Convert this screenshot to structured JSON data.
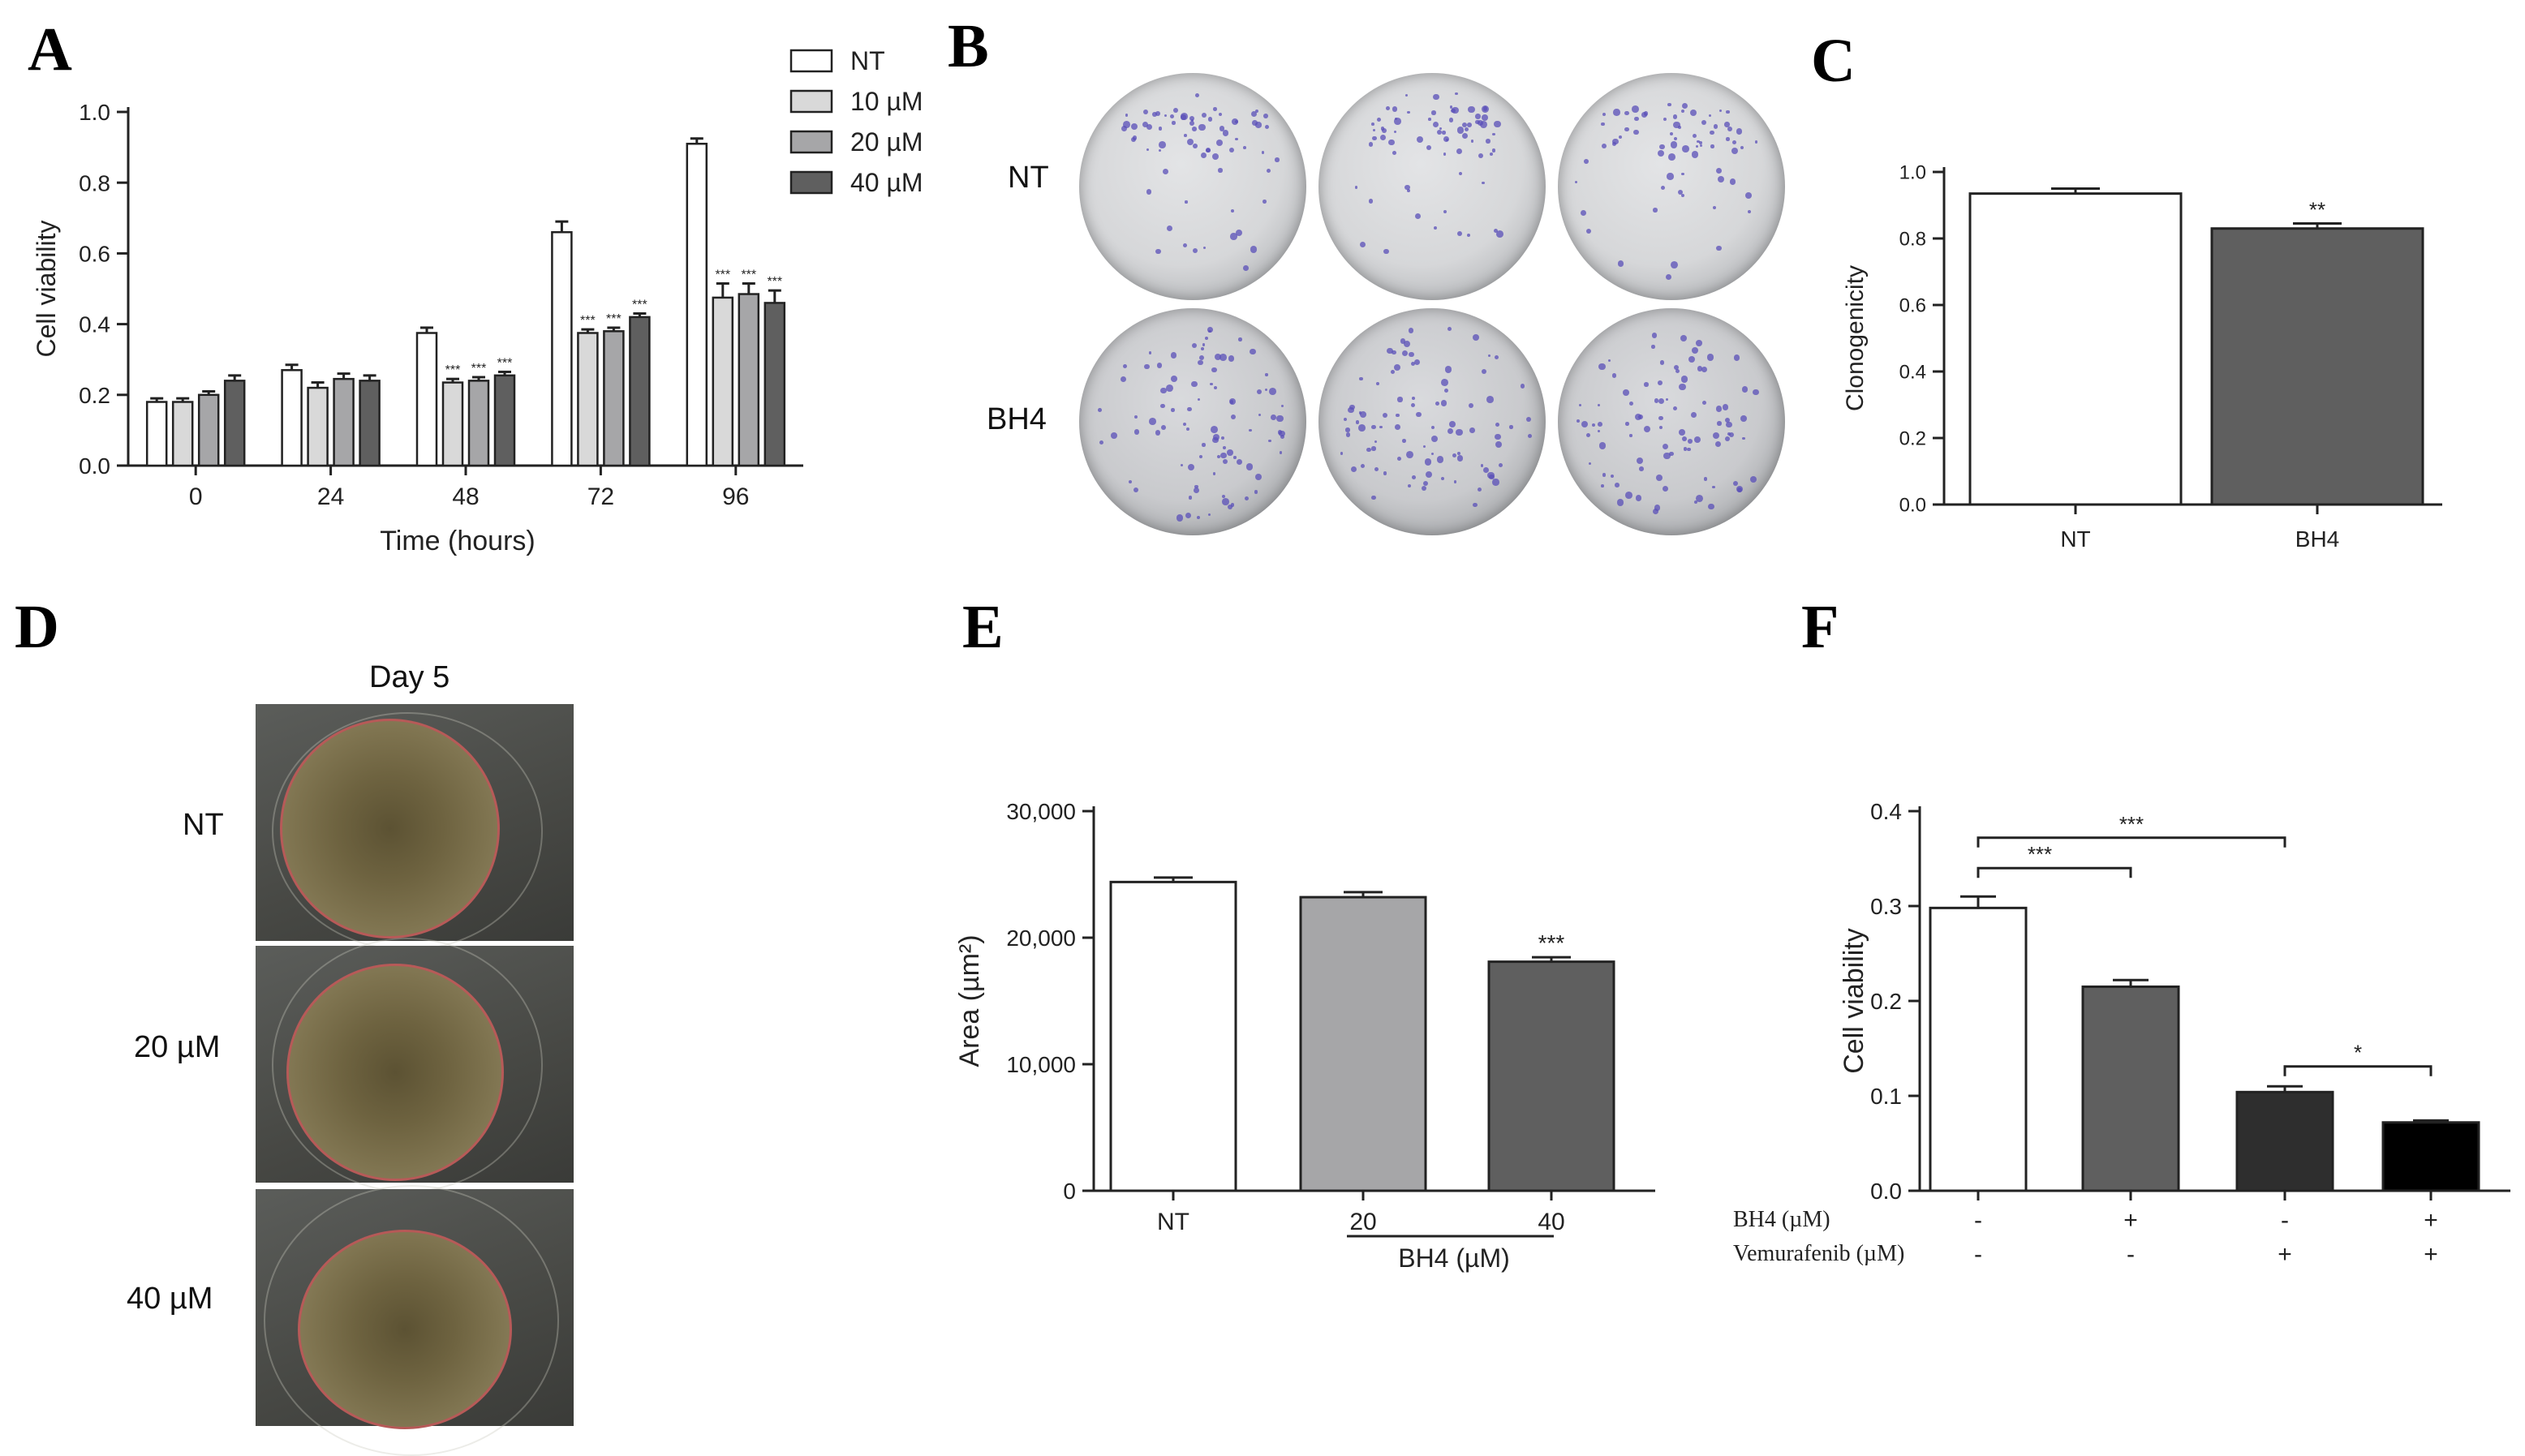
{
  "panels": {
    "A": "A",
    "B": "B",
    "C": "C",
    "D": "D",
    "E": "E",
    "F": "F"
  },
  "colors": {
    "white": "#ffffff",
    "light_grey": "#d9d9d9",
    "mid_grey": "#a6a6a8",
    "dark_grey": "#5f5f5f",
    "darker": "#2e2e2e",
    "black": "#000000"
  },
  "chart_data": [
    {
      "id": "A",
      "type": "bar",
      "xlabel": "Time (hours)",
      "ylabel": "Cell viability",
      "ylim": [
        0,
        1.0
      ],
      "yticks": [
        "0.0",
        "0.2",
        "0.4",
        "0.6",
        "0.8",
        "1.0"
      ],
      "categories": [
        "0",
        "24",
        "48",
        "72",
        "96"
      ],
      "legend_position": "top-right",
      "series": [
        {
          "name": "NT",
          "values": [
            0.18,
            0.27,
            0.375,
            0.66,
            0.91
          ],
          "errors": [
            0.01,
            0.015,
            0.015,
            0.03,
            0.015
          ],
          "sig": [
            "",
            "",
            "",
            "",
            ""
          ]
        },
        {
          "name": "10 µM",
          "values": [
            0.18,
            0.22,
            0.235,
            0.375,
            0.475
          ],
          "errors": [
            0.01,
            0.015,
            0.01,
            0.01,
            0.04
          ],
          "sig": [
            "",
            "",
            "***",
            "***",
            "***"
          ]
        },
        {
          "name": "20 µM",
          "values": [
            0.2,
            0.245,
            0.24,
            0.38,
            0.485
          ],
          "errors": [
            0.01,
            0.015,
            0.01,
            0.01,
            0.03
          ],
          "sig": [
            "",
            "",
            "***",
            "***",
            "***"
          ]
        },
        {
          "name": "40 µM",
          "values": [
            0.24,
            0.24,
            0.255,
            0.42,
            0.46
          ],
          "errors": [
            0.015,
            0.015,
            0.01,
            0.01,
            0.035
          ],
          "sig": [
            "",
            "",
            "***",
            "***",
            "***"
          ]
        }
      ]
    },
    {
      "id": "C",
      "type": "bar",
      "ylabel": "Clonogenicity",
      "ylim": [
        0,
        1.0
      ],
      "yticks": [
        "0.0",
        "0.2",
        "0.4",
        "0.6",
        "0.8",
        "1.0"
      ],
      "categories": [
        "NT",
        "BH4"
      ],
      "values": [
        0.935,
        0.83
      ],
      "errors": [
        0.015,
        0.015
      ],
      "sig": [
        "",
        "**"
      ]
    },
    {
      "id": "E",
      "type": "bar",
      "ylabel": "Area (µm²)",
      "ylim": [
        0,
        30000
      ],
      "yticks": [
        "0",
        "10,000",
        "20,000",
        "30,000"
      ],
      "categories": [
        "NT",
        "20",
        "40"
      ],
      "group_label": "BH4 (µM)",
      "values": [
        24400,
        23200,
        18100
      ],
      "errors": [
        350,
        400,
        350
      ],
      "sig": [
        "",
        "",
        "***"
      ]
    },
    {
      "id": "F",
      "type": "bar",
      "ylabel": "Cell viability",
      "ylim": [
        0,
        0.4
      ],
      "yticks": [
        "0.0",
        "0.1",
        "0.2",
        "0.3",
        "0.4"
      ],
      "values": [
        0.298,
        0.215,
        0.104,
        0.072
      ],
      "errors": [
        0.012,
        0.007,
        0.006,
        0.002
      ],
      "row_labels": [
        "BH4 (µM)",
        "Vemurafenib (µM)"
      ],
      "conditions": [
        [
          "-",
          "-"
        ],
        [
          "+",
          "-"
        ],
        [
          "-",
          "+"
        ],
        [
          "+",
          "+"
        ]
      ],
      "brackets": [
        {
          "from": 0,
          "to": 2,
          "label": "***"
        },
        {
          "from": 0,
          "to": 1,
          "label": "***"
        },
        {
          "from": 2,
          "to": 3,
          "label": "*"
        }
      ]
    }
  ],
  "panel_B": {
    "row_labels": [
      "NT",
      "BH4"
    ]
  },
  "panel_D": {
    "title": "Day 5",
    "row_labels": [
      "NT",
      "20 µM",
      "40 µM"
    ]
  }
}
